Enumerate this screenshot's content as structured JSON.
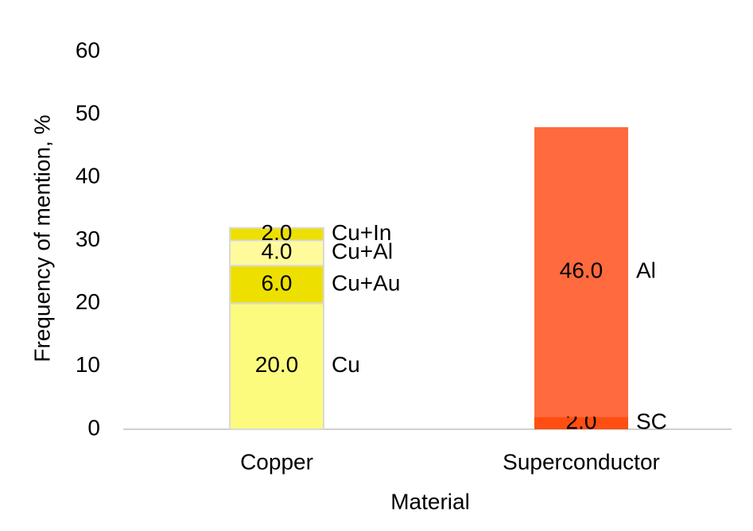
{
  "chart_data": {
    "type": "stacked-bar",
    "x_label": "Material",
    "y_label": "Frequency of mention, %",
    "categories": [
      "Copper",
      "Superconductor"
    ],
    "series": [
      {
        "name": "Cu",
        "color": "#fdfb7e",
        "values": [
          20,
          null
        ],
        "value_labels": [
          "20.0",
          null
        ]
      },
      {
        "name": "Cu+Au",
        "color": "#ede000",
        "values": [
          6,
          null
        ],
        "value_labels": [
          "6.0",
          null
        ]
      },
      {
        "name": "Cu+Al",
        "color": "#fffb9c",
        "values": [
          4,
          null
        ],
        "value_labels": [
          "4.0",
          null
        ]
      },
      {
        "name": "Cu+In",
        "color": "#ede000",
        "values": [
          2,
          null
        ],
        "value_labels": [
          "2.0",
          null
        ]
      },
      {
        "name": "SC",
        "color": "#ff4e12",
        "values": [
          null,
          2
        ],
        "value_labels": [
          null,
          "2.0"
        ]
      },
      {
        "name": "Al",
        "color": "#ff6a3e",
        "values": [
          null,
          46
        ],
        "value_labels": [
          null,
          "46.0"
        ]
      }
    ],
    "ylim": [
      0,
      60
    ],
    "yticks": [
      0,
      10,
      20,
      30,
      40,
      50,
      60
    ],
    "grid": false
  }
}
